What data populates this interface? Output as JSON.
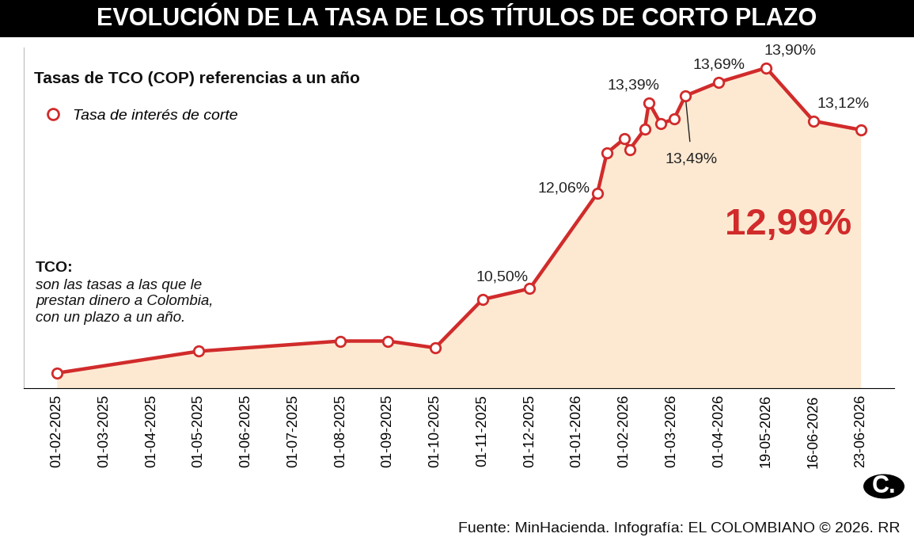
{
  "chart_data": {
    "type": "line",
    "title": "EVOLUCIÓN DE LA TASA DE LOS TÍTULOS DE CORTO PLAZO",
    "subtitle": "Tasas de TCO (COP) referencias a un año",
    "note_label": "TCO:",
    "note": "son las tasas a las que le prestan dinero a Colombia, con un plazo a un año.",
    "source": "Fuente: MinHacienda. Infografía: EL COLOMBIANO © 2026. RR",
    "logo": "C.",
    "x": [
      0,
      3,
      6,
      7,
      8,
      9,
      10,
      11.43,
      11.63,
      12,
      12.11,
      12.43,
      12.52,
      12.77,
      13.05,
      13.29,
      14,
      15,
      16,
      17
    ],
    "series": [
      {
        "name": "Tasa de interés de corte",
        "color": "#d12b2b",
        "marker": "o",
        "values": [
          9.42,
          9.74,
          9.89,
          9.89,
          9.79,
          10.5,
          10.66,
          12.06,
          12.65,
          12.86,
          12.7,
          13.0,
          13.39,
          13.08,
          13.15,
          13.49,
          13.69,
          13.9,
          13.12,
          12.99
        ],
        "value_labels": [
          null,
          null,
          null,
          null,
          null,
          "10,50%",
          null,
          "12,06%",
          null,
          null,
          null,
          null,
          "13,39%",
          null,
          null,
          "13,49%",
          "13,69%",
          "13,90%",
          "13,12%",
          "12,99%"
        ]
      }
    ],
    "xlim": [
      -0.7,
      17.7
    ],
    "xticks": [
      {
        "value": 0,
        "label": "01-02-2025"
      },
      {
        "value": 1,
        "label": "01-03-2025"
      },
      {
        "value": 2,
        "label": "01-04-2025"
      },
      {
        "value": 3,
        "label": "01-05-2025"
      },
      {
        "value": 4,
        "label": "01-06-2025"
      },
      {
        "value": 5,
        "label": "01-07-2025"
      },
      {
        "value": 6,
        "label": "01-08-2025"
      },
      {
        "value": 7,
        "label": "01-09-2025"
      },
      {
        "value": 8,
        "label": "01-10-2025"
      },
      {
        "value": 9,
        "label": "01-11-2025"
      },
      {
        "value": 10,
        "label": "01-12-2025"
      },
      {
        "value": 11,
        "label": "01-01-2026"
      },
      {
        "value": 12,
        "label": "01-02-2026"
      },
      {
        "value": 13,
        "label": "01-03-2026"
      },
      {
        "value": 14,
        "label": "01-04-2026"
      },
      {
        "value": 15,
        "label": "19-05-2026"
      },
      {
        "value": 16,
        "label": "16-06-2026"
      },
      {
        "value": 17,
        "label": "23-06-2026"
      }
    ],
    "ylim": [
      9.2,
      14.2
    ],
    "yticks": [],
    "tick_labels": "x",
    "data_labels": true,
    "legend": "upper left",
    "grid": false
  }
}
